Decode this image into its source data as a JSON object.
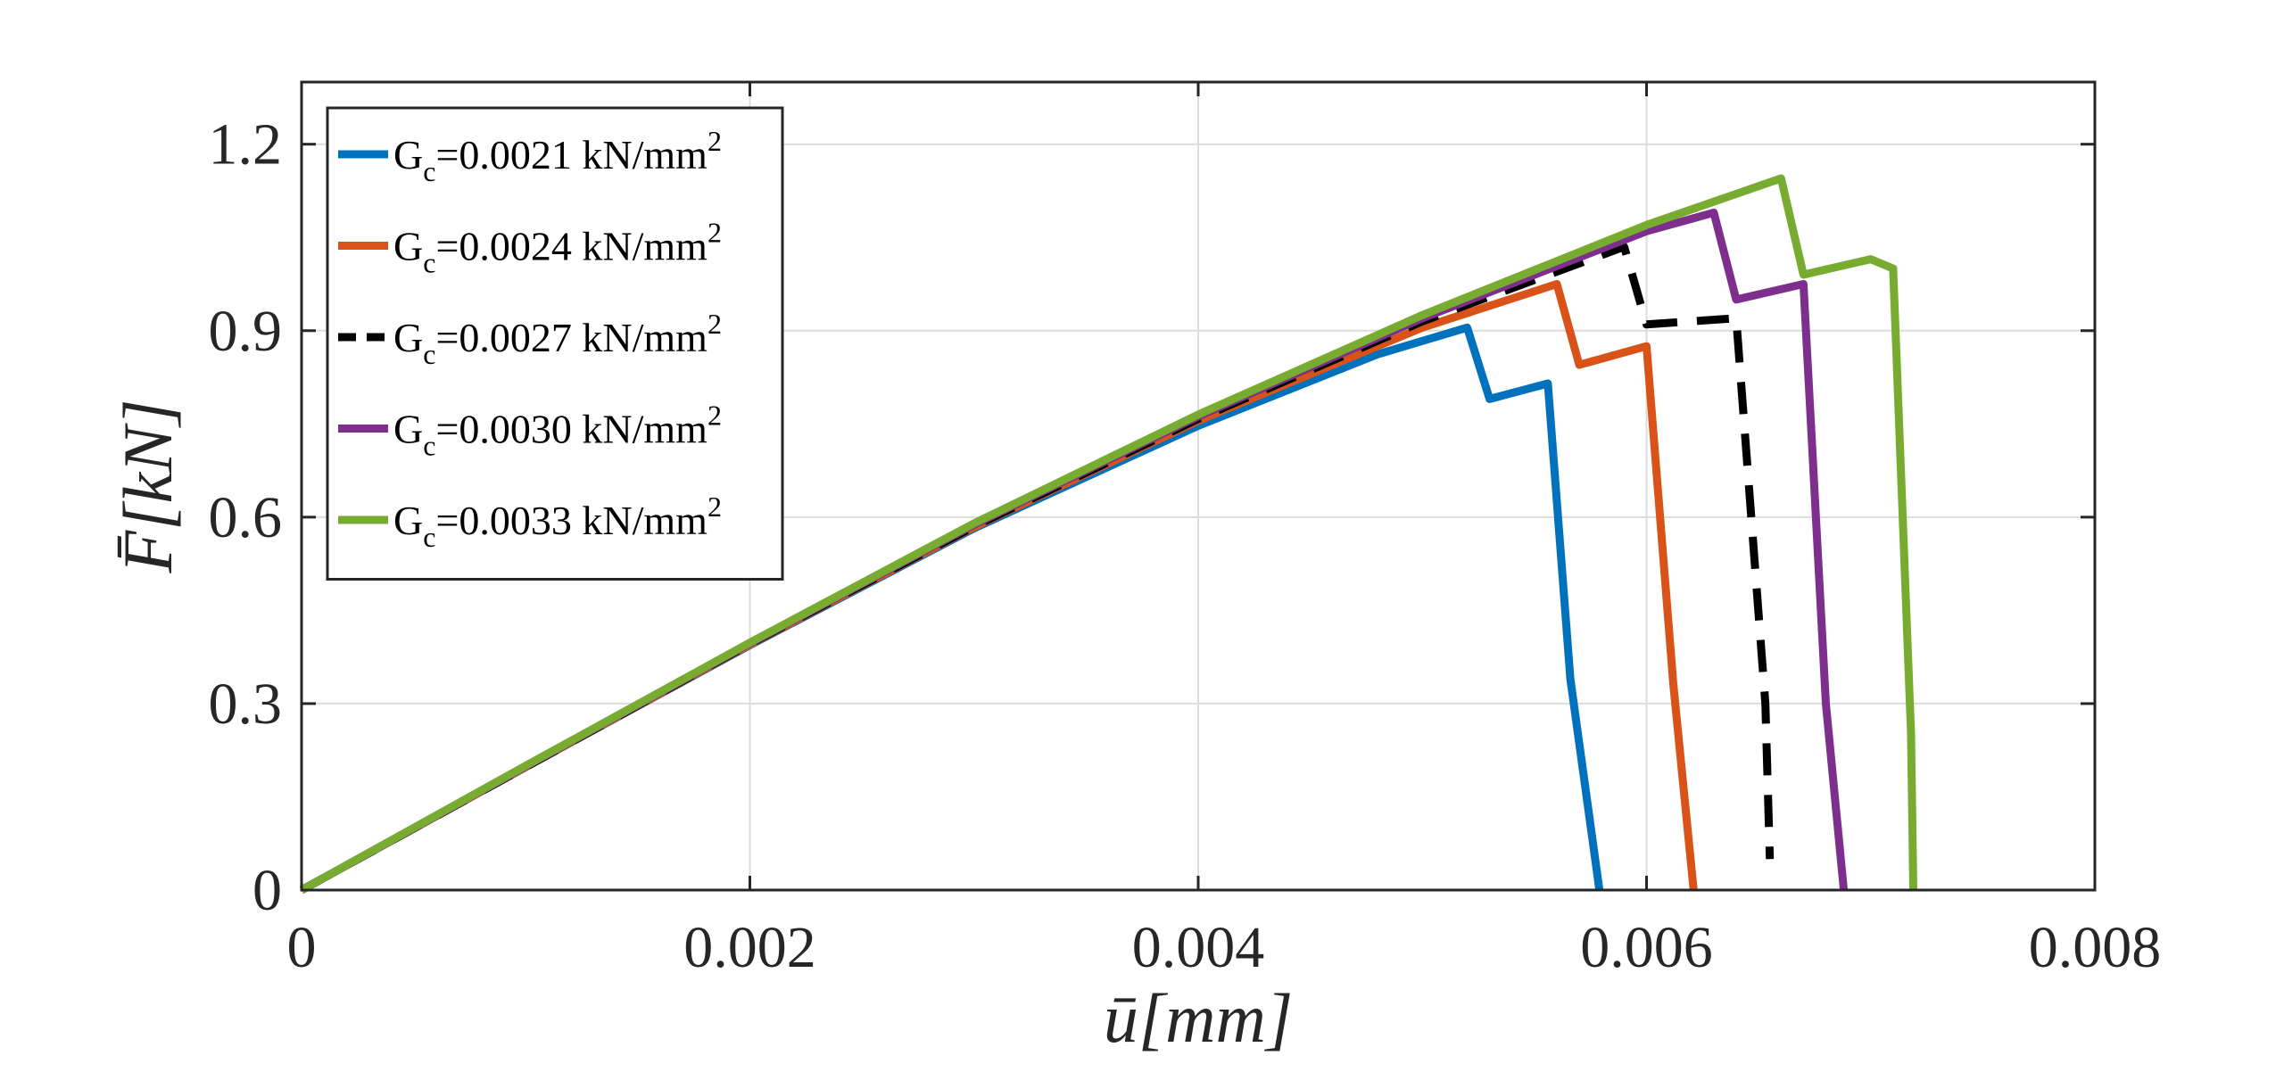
{
  "chart_data": {
    "type": "line",
    "title": "",
    "xlabel": "ū[mm]",
    "ylabel": "F̄[kN]",
    "xlim": [
      0,
      0.008
    ],
    "ylim": [
      0,
      1.3
    ],
    "xticks": [
      0,
      0.002,
      0.004,
      0.006,
      0.008
    ],
    "xtick_labels": [
      "0",
      "0.002",
      "0.004",
      "0.006",
      "0.008"
    ],
    "yticks": [
      0,
      0.3,
      0.6,
      0.9,
      1.2
    ],
    "ytick_labels": [
      "0",
      "0.3",
      "0.6",
      "0.9",
      "1.2"
    ],
    "grid": true,
    "legend_position": "top-left",
    "series": [
      {
        "name": "Gc=0.0021 kN/mm2",
        "legend": {
          "base": "G",
          "sub": "c",
          "main": "=0.0021 kN/mm",
          "sup": "2"
        },
        "color": "#0072BD",
        "dash": "solid",
        "x": [
          0,
          0.001,
          0.002,
          0.003,
          0.004,
          0.0048,
          0.0052,
          0.0053,
          0.00556,
          0.00566,
          0.00579
        ],
        "y": [
          0,
          0.198,
          0.394,
          0.582,
          0.747,
          0.862,
          0.905,
          0.79,
          0.815,
          0.34,
          0.0
        ]
      },
      {
        "name": "Gc=0.0024 kN/mm2",
        "legend": {
          "base": "G",
          "sub": "c",
          "main": "=0.0024 kN/mm",
          "sup": "2"
        },
        "color": "#D95319",
        "dash": "solid",
        "x": [
          0,
          0.001,
          0.002,
          0.003,
          0.004,
          0.005,
          0.0056,
          0.0057,
          0.006,
          0.00612,
          0.00621
        ],
        "y": [
          0,
          0.198,
          0.395,
          0.584,
          0.755,
          0.905,
          0.975,
          0.845,
          0.875,
          0.33,
          0.0
        ]
      },
      {
        "name": "Gc=0.0027 kN/mm2",
        "legend": {
          "base": "G",
          "sub": "c",
          "main": "=0.0027 kN/mm",
          "sup": "2"
        },
        "color": "#000000",
        "dash": "dashed",
        "x": [
          0,
          0.001,
          0.002,
          0.003,
          0.004,
          0.005,
          0.0059,
          0.006,
          0.0064,
          0.00653,
          0.00655
        ],
        "y": [
          0,
          0.198,
          0.396,
          0.585,
          0.758,
          0.915,
          1.035,
          0.91,
          0.92,
          0.3,
          0.05
        ]
      },
      {
        "name": "Gc=0.0030 kN/mm2",
        "legend": {
          "base": "G",
          "sub": "c",
          "main": "=0.0030 kN/mm",
          "sup": "2"
        },
        "color": "#7E2F8E",
        "dash": "solid",
        "x": [
          0,
          0.001,
          0.002,
          0.003,
          0.004,
          0.005,
          0.006,
          0.0063,
          0.0064,
          0.0067,
          0.0068,
          0.00688
        ],
        "y": [
          0,
          0.199,
          0.397,
          0.588,
          0.762,
          0.92,
          1.06,
          1.09,
          0.95,
          0.975,
          0.3,
          0.0
        ]
      },
      {
        "name": "Gc=0.0033 kN/mm2",
        "legend": {
          "base": "G",
          "sub": "c",
          "main": "=0.0033 kN/mm",
          "sup": "2"
        },
        "color": "#77AC30",
        "dash": "solid",
        "x": [
          0,
          0.001,
          0.002,
          0.003,
          0.004,
          0.005,
          0.006,
          0.0066,
          0.0067,
          0.007,
          0.0071,
          0.00718,
          0.00719
        ],
        "y": [
          0,
          0.2,
          0.398,
          0.59,
          0.765,
          0.925,
          1.07,
          1.145,
          0.99,
          1.015,
          1.0,
          0.25,
          0.0
        ]
      }
    ]
  }
}
